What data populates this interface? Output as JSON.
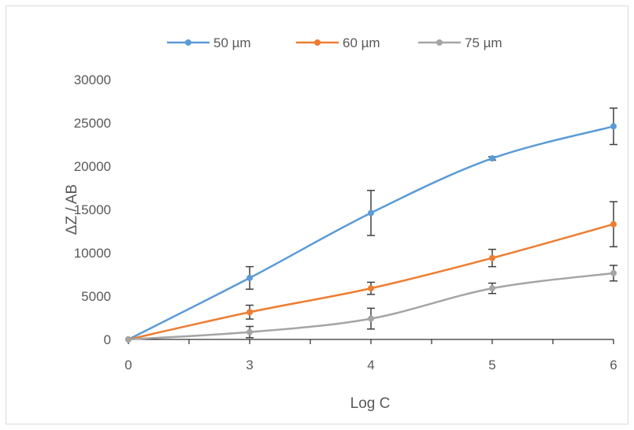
{
  "chart_data": {
    "type": "line",
    "title": "",
    "xlabel": "Log C",
    "ylabel": "ΔZ / AB",
    "categories": [
      "0",
      "3",
      "4",
      "5",
      "6"
    ],
    "ylim": [
      0,
      30000
    ],
    "yticks": [
      "0",
      "5000",
      "10000",
      "15000",
      "20000",
      "25000",
      "30000"
    ],
    "grid": false,
    "legend_position": "top",
    "series": [
      {
        "name": "50 µm",
        "color": "#5b9bd5",
        "values": [
          0,
          7100,
          14600,
          20900,
          24600
        ],
        "errors": [
          0,
          1300,
          2600,
          200,
          2100
        ]
      },
      {
        "name": "60 µm",
        "color": "#ed7d31",
        "values": [
          0,
          3150,
          5900,
          9400,
          13300
        ],
        "errors": [
          0,
          800,
          700,
          1000,
          2600
        ]
      },
      {
        "name": "75 µm",
        "color": "#a5a5a5",
        "values": [
          0,
          850,
          2400,
          5900,
          7650
        ],
        "errors": [
          0,
          650,
          1200,
          600,
          900
        ]
      }
    ]
  }
}
